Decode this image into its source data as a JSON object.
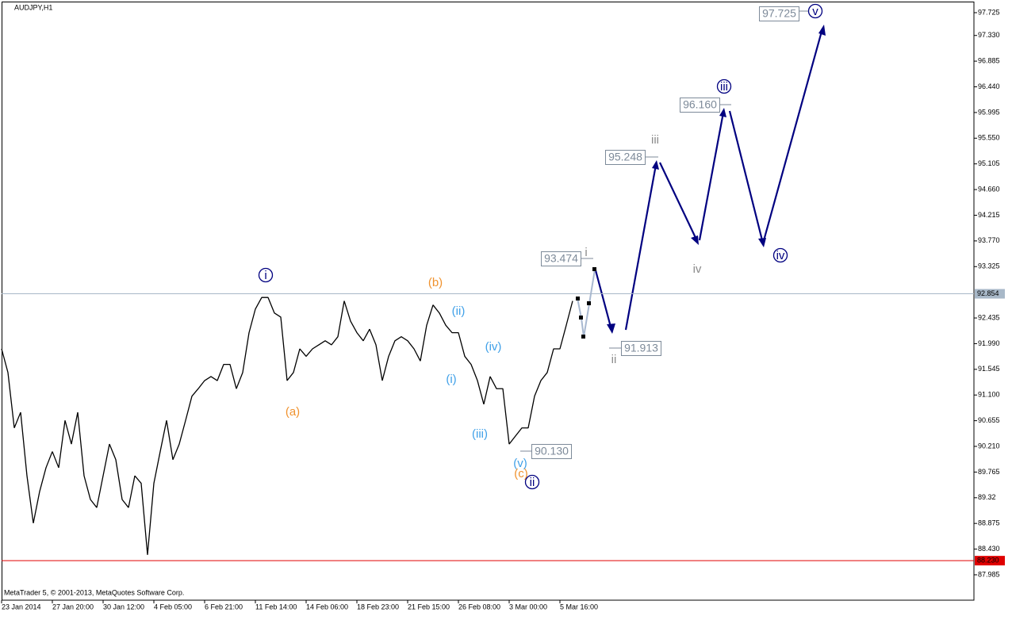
{
  "chart_data": {
    "type": "line",
    "title": "AUDJPY,H1",
    "footer": "MetaTrader 5, © 2001-2013, MetaQuotes Software Corp.",
    "categories": [
      "23 Jan 2014",
      null,
      null,
      null,
      null,
      null,
      null,
      null,
      "27 Jan 20:00",
      null,
      null,
      null,
      null,
      null,
      null,
      null,
      "30 Jan 12:00",
      null,
      null,
      null,
      null,
      null,
      null,
      null,
      "4 Feb 05:00",
      null,
      null,
      null,
      null,
      null,
      null,
      null,
      "6 Feb 21:00",
      null,
      null,
      null,
      null,
      null,
      null,
      null,
      "11 Feb 14:00",
      null,
      null,
      null,
      null,
      null,
      null,
      null,
      "14 Feb 06:00",
      null,
      null,
      null,
      null,
      null,
      null,
      null,
      "18 Feb 23:00",
      null,
      null,
      null,
      null,
      null,
      null,
      null,
      "21 Feb 15:00",
      null,
      null,
      null,
      null,
      null,
      null,
      null,
      "26 Feb 08:00",
      null,
      null,
      null,
      null,
      null,
      null,
      null,
      "3 Mar 00:00",
      null,
      null,
      null,
      null,
      null,
      null,
      null,
      "5 Mar 16:00",
      null,
      null
    ],
    "series": [
      {
        "name": "AUDJPY",
        "color": "#000000",
        "values": [
          91.9,
          91.49,
          90.53,
          90.8,
          89.7,
          88.88,
          89.43,
          89.84,
          90.12,
          89.84,
          90.66,
          90.25,
          90.8,
          89.7,
          89.29,
          89.15,
          89.7,
          90.25,
          89.98,
          89.29,
          89.15,
          89.7,
          89.57,
          88.33,
          89.57,
          90.12,
          90.66,
          89.98,
          90.25,
          90.66,
          91.08,
          91.21,
          91.35,
          91.42,
          91.35,
          91.63,
          91.63,
          91.21,
          91.49,
          92.18,
          92.59,
          92.79,
          92.79,
          92.52,
          92.45,
          91.35,
          91.49,
          91.9,
          91.77,
          91.9,
          91.97,
          92.04,
          91.97,
          92.11,
          92.73,
          92.38,
          92.18,
          92.04,
          92.24,
          91.97,
          91.35,
          91.77,
          92.04,
          92.11,
          92.04,
          91.9,
          91.69,
          92.31,
          92.66,
          92.52,
          92.31,
          92.18,
          92.18,
          91.77,
          91.63,
          91.35,
          90.94,
          91.42,
          91.21,
          91.21,
          90.25,
          90.39,
          90.53,
          90.53,
          91.08,
          91.35,
          91.49,
          91.9,
          91.9,
          92.31,
          92.73
        ]
      }
    ],
    "ylim": [
      87.545,
      97.917
    ],
    "yticks": [
      97.725,
      {
        "value": 97.33,
        "label": "97.330"
      },
      96.885,
      {
        "value": 96.44,
        "label": "96.440"
      },
      95.995,
      {
        "value": 95.55,
        "label": "95.550"
      },
      95.105,
      {
        "value": 94.66,
        "label": "94.660"
      },
      94.215,
      {
        "value": 93.77,
        "label": "93.770"
      },
      93.325,
      92.435,
      {
        "value": 91.99,
        "label": "91.990"
      },
      91.545,
      {
        "value": 91.1,
        "label": "91.100"
      },
      90.655,
      {
        "value": 90.21,
        "label": "90.210"
      },
      89.765,
      89.32,
      88.875,
      {
        "value": 88.43,
        "label": "88.430"
      },
      87.985
    ],
    "hlines": [
      {
        "value": 92.854,
        "color": "#a8b8c8"
      },
      {
        "value": {
          "value": 88.23,
          "label": "88.230"
        },
        "color": "#e00000"
      }
    ],
    "price_labels": [
      "97.725",
      "96.160",
      "95.248",
      "93.474",
      "91.913",
      "90.130"
    ],
    "wave_labels": [
      {
        "text": "i",
        "color": "#000080",
        "circled": true
      },
      {
        "text": "(b)",
        "color": "#f0922e",
        "circled": false
      },
      {
        "text": "(ii)",
        "color": "#3fa0e8",
        "circled": false
      },
      {
        "text": "(iv)",
        "color": "#3fa0e8",
        "circled": false
      },
      {
        "text": "(i)",
        "color": "#3fa0e8",
        "circled": false
      },
      {
        "text": "(a)",
        "color": "#f0922e",
        "circled": false
      },
      {
        "text": "(iii)",
        "color": "#3fa0e8",
        "circled": false
      },
      {
        "text": "(v)",
        "color": "#3fa0e8",
        "circled": false
      },
      {
        "text": "(c)",
        "color": "#f0922e",
        "circled": false
      },
      {
        "text": "ii",
        "color": "#000080",
        "circled": true
      },
      {
        "text": "i",
        "color": "#8a8a8a",
        "circled": false
      },
      {
        "text": "ii",
        "color": "#8a8a8a",
        "circled": false
      },
      {
        "text": "iii",
        "color": "#8a8a8a",
        "circled": false
      },
      {
        "text": "iv",
        "color": "#8a8a8a",
        "circled": false
      },
      {
        "text": "iii",
        "color": "#000080",
        "circled": true
      },
      {
        "text": "iv",
        "color": "#000080",
        "circled": true
      },
      {
        "text": "v",
        "color": "#000080",
        "circled": true
      }
    ],
    "grid": false
  }
}
